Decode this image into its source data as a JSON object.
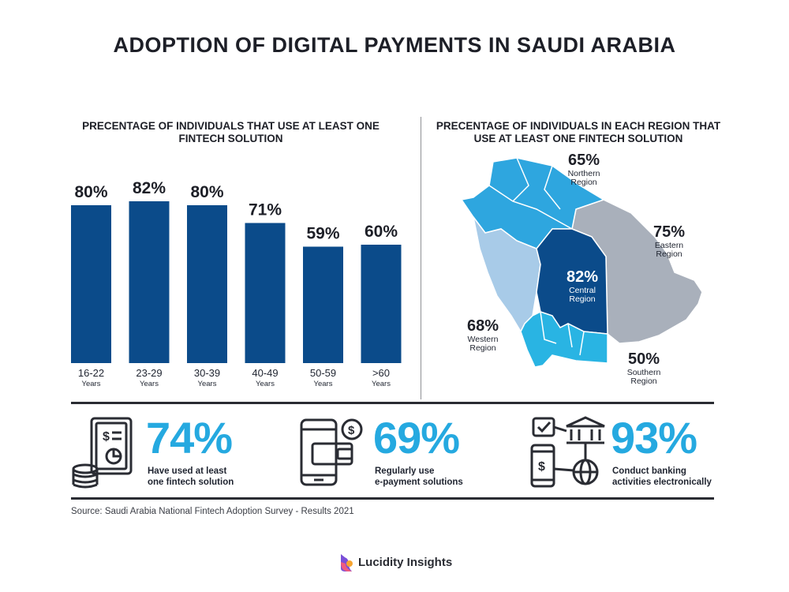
{
  "title": "ADOPTION OF DIGITAL PAYMENTS IN SAUDI ARABIA",
  "chart_data": [
    {
      "type": "bar",
      "title": "PRECENTAGE OF INDIVIDUALS THAT USE AT LEAST ONE FINTECH SOLUTION",
      "categories": [
        "16-22",
        "23-29",
        "30-39",
        "40-49",
        "50-59",
        ">60"
      ],
      "category_sublabel": "Years",
      "values": [
        80,
        82,
        80,
        71,
        59,
        60
      ],
      "value_labels": [
        "80%",
        "82%",
        "80%",
        "71%",
        "59%",
        "60%"
      ],
      "bar_color": "#0b4b8a",
      "ylim": [
        0,
        100
      ]
    },
    {
      "type": "map",
      "title": "PRECENTAGE OF INDIVIDUALS IN EACH REGION THAT USE AT LEAST ONE FINTECH SOLUTION",
      "regions": [
        {
          "name": "Northern Region",
          "value": 65,
          "label": "65%",
          "color": "#2ea6df"
        },
        {
          "name": "Eastern Region",
          "value": 75,
          "label": "75%",
          "color": "#a9b0bb"
        },
        {
          "name": "Central Region",
          "value": 82,
          "label": "82%",
          "color": "#0b4b8a"
        },
        {
          "name": "Western Region",
          "value": 68,
          "label": "68%",
          "color": "#a8cbe8"
        },
        {
          "name": "Southern Region",
          "value": 50,
          "label": "50%",
          "color": "#29b4e3"
        }
      ]
    }
  ],
  "region_labels": {
    "northern": [
      "Northern",
      "Region"
    ],
    "eastern": [
      "Eastern",
      "Region"
    ],
    "central": [
      "Central",
      "Region"
    ],
    "western": [
      "Western",
      "Region"
    ],
    "southern": [
      "Southern",
      "Region"
    ]
  },
  "stats": [
    {
      "value": "74%",
      "line1": "Have used at least",
      "line2": "one fintech solution",
      "icon": "document-coins-icon"
    },
    {
      "value": "69%",
      "line1": "Regularly use",
      "line2": "e-payment solutions",
      "icon": "phone-wallet-icon"
    },
    {
      "value": "93%",
      "line1": "Conduct banking",
      "line2": "activities electronically",
      "icon": "bank-network-icon"
    }
  ],
  "source": "Source: Saudi Arabia National Fintech Adoption Survey - Results 2021",
  "logo": {
    "text": "Lucidity Insights"
  },
  "colors": {
    "accent": "#25a9e0",
    "bar": "#0b4b8a",
    "dark": "#2a2c33"
  }
}
